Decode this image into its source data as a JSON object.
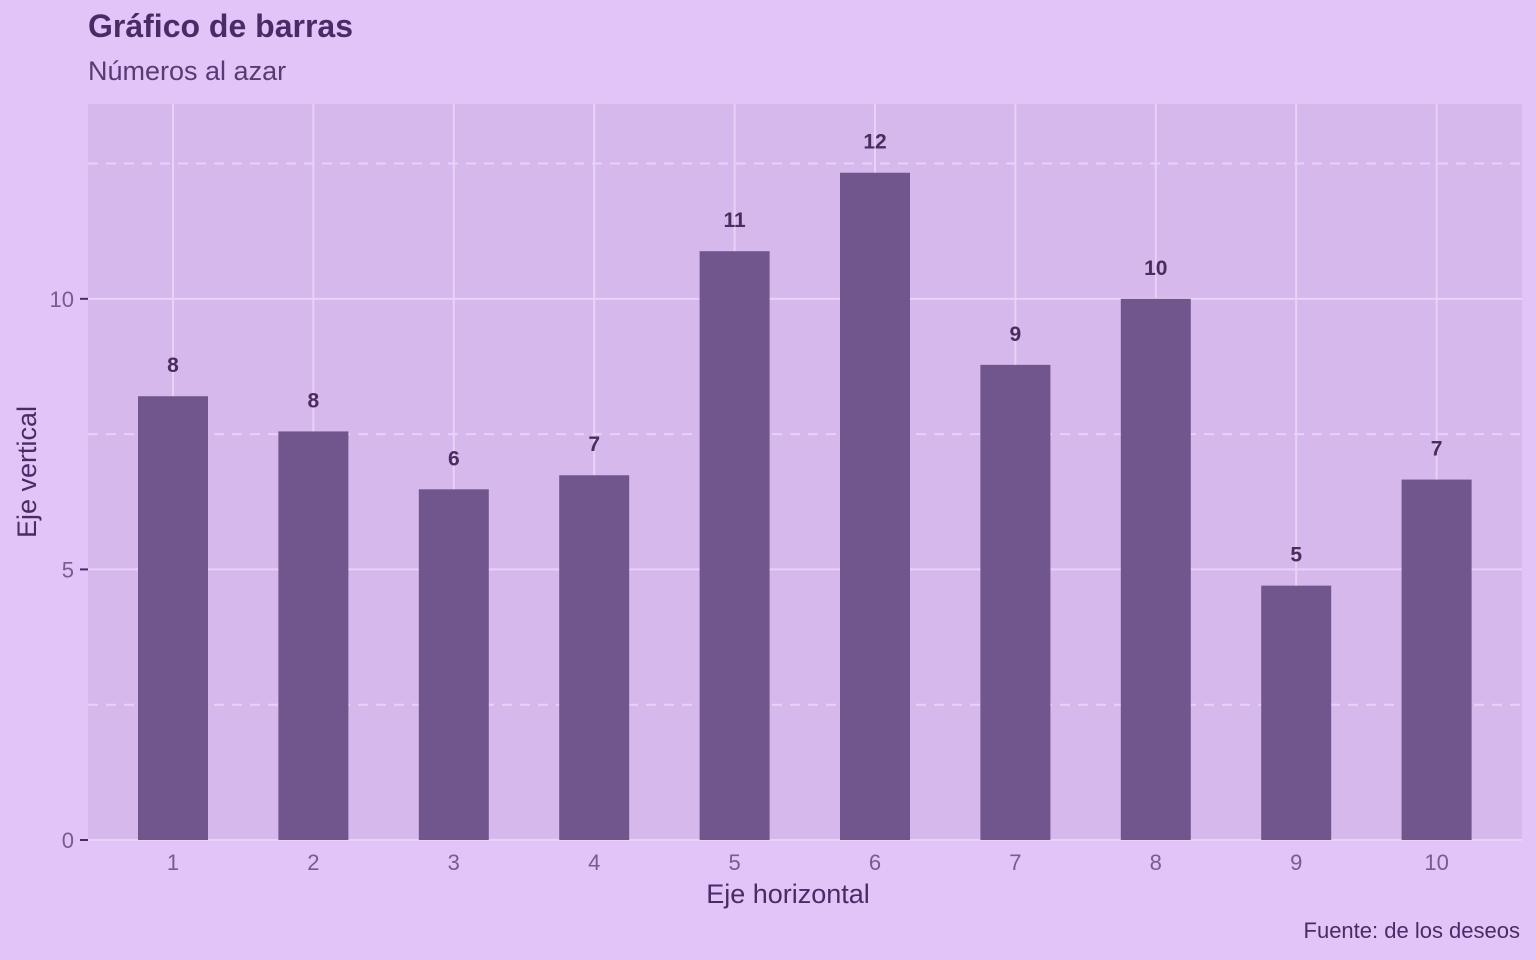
{
  "chart_data": {
    "type": "bar",
    "title": "Gráfico de barras",
    "subtitle": "Números al azar",
    "caption": "Fuente: de los deseos",
    "xlabel": "Eje horizontal",
    "ylabel": "Eje vertical",
    "categories": [
      "1",
      "2",
      "3",
      "4",
      "5",
      "6",
      "7",
      "8",
      "9",
      "10"
    ],
    "values": [
      8.2,
      7.55,
      6.48,
      6.74,
      10.88,
      12.33,
      8.78,
      10.0,
      4.7,
      6.66
    ],
    "data_labels": [
      "8",
      "8",
      "6",
      "7",
      "11",
      "12",
      "9",
      "10",
      "5",
      "7"
    ],
    "yticks": [
      0,
      5,
      10
    ],
    "ylim": [
      0,
      13.6
    ],
    "grid": true,
    "colors": {
      "background": "#e2c4f9",
      "panel": "#d6b8ec",
      "bar": "#70568d",
      "grid_major": "#e8d2f8",
      "text": "#4b2a66"
    }
  }
}
